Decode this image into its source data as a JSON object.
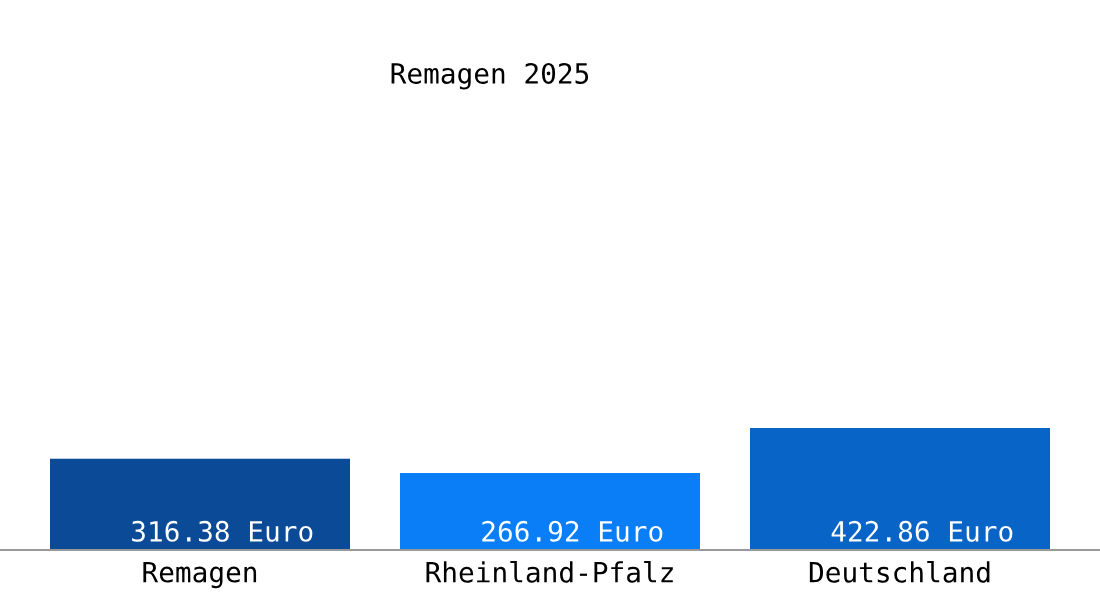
{
  "chart_data": {
    "type": "bar",
    "title": "Remagen 2025",
    "categories": [
      "Remagen",
      "Rheinland-Pfalz",
      "Deutschland"
    ],
    "values": [
      316.38,
      266.92,
      422.86
    ],
    "colors": [
      "#0b4a97",
      "#0a7ef7",
      "#0964c8"
    ],
    "value_labels": [
      "316.38 Euro",
      "266.92 Euro",
      "422.86 Euro"
    ],
    "grid": false,
    "legend": false,
    "tick_labels": "x"
  }
}
